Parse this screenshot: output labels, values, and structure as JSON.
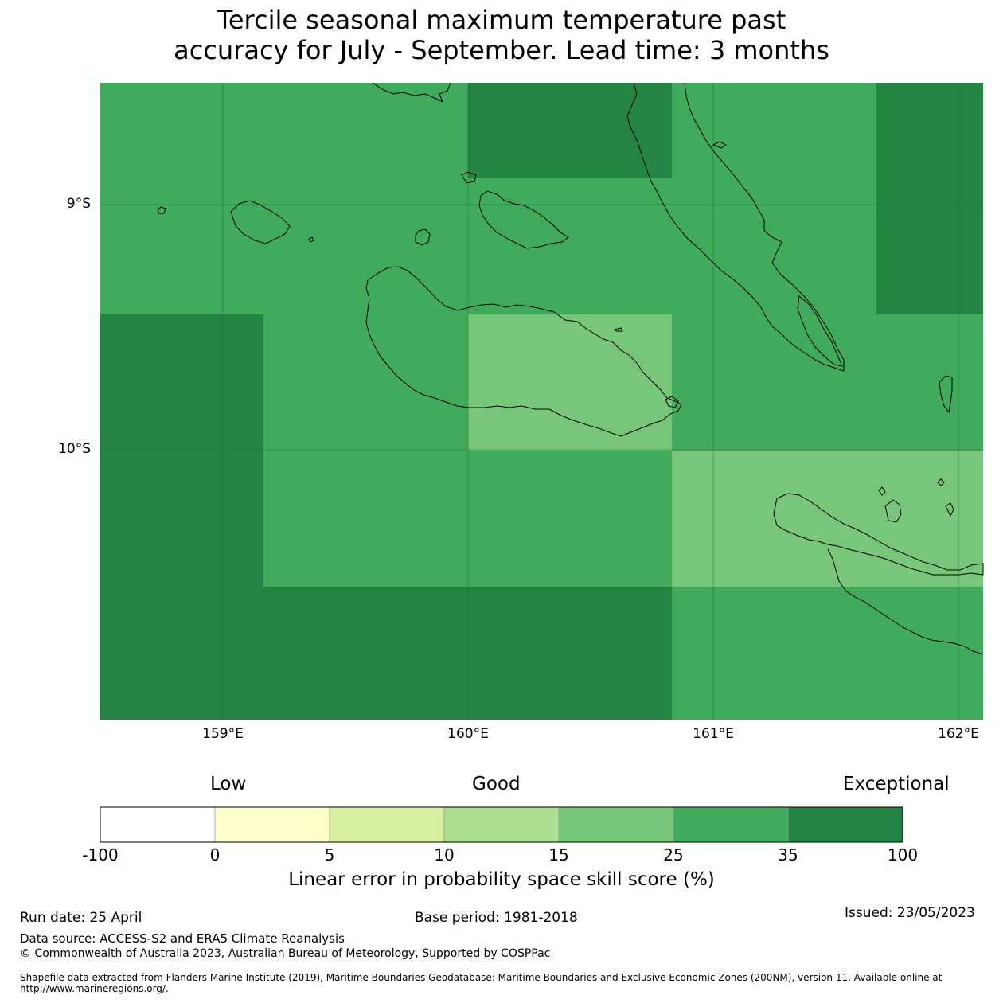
{
  "title": {
    "line1": "Tercile seasonal maximum temperature past",
    "line2": "accuracy for July - September. Lead time: 3 months"
  },
  "map": {
    "lat_labels": [
      "9°S",
      "10°S"
    ],
    "lon_labels": [
      "159°E",
      "160°E",
      "161°E",
      "162°E"
    ]
  },
  "colorbar": {
    "categories": [
      "Low",
      "Good",
      "Exceptional"
    ],
    "ticks": [
      "-100",
      "0",
      "5",
      "10",
      "15",
      "25",
      "35",
      "100"
    ],
    "bins": [
      {
        "from": -100,
        "to": 0,
        "color": "#ffffff"
      },
      {
        "from": 0,
        "to": 5,
        "color": "#ffffcc"
      },
      {
        "from": 5,
        "to": 10,
        "color": "#d9f0a3"
      },
      {
        "from": 10,
        "to": 15,
        "color": "#addd8e"
      },
      {
        "from": 15,
        "to": 25,
        "color": "#78c679"
      },
      {
        "from": 25,
        "to": 35,
        "color": "#41ab5d"
      },
      {
        "from": 35,
        "to": 100,
        "color": "#238443"
      }
    ],
    "label": "Linear error in probability space skill score (%)"
  },
  "footer": {
    "run_date": "Run date: 25 April",
    "base_period": "Base period: 1981-2018",
    "issued": "Issued: 23/05/2023",
    "data_source": "Data source: ACCESS-S2 and ERA5 Climate Reanalysis",
    "copyright": "© Commonwealth of Australia 2023, Australian Bureau of Meteorology, Supported by COSPPac",
    "shapefile_note": "Shapefile data extracted from Flanders Marine Institute (2019), Maritime Boundaries Geodatabase: Maritime Boundaries and Exclusive Economic Zones (200NM), version 11. Available online at http://www.marineregions.org/."
  },
  "colors": {
    "good_25_35": "#41ab5d",
    "good_35_100": "#238443",
    "good_15_25": "#78c679"
  }
}
